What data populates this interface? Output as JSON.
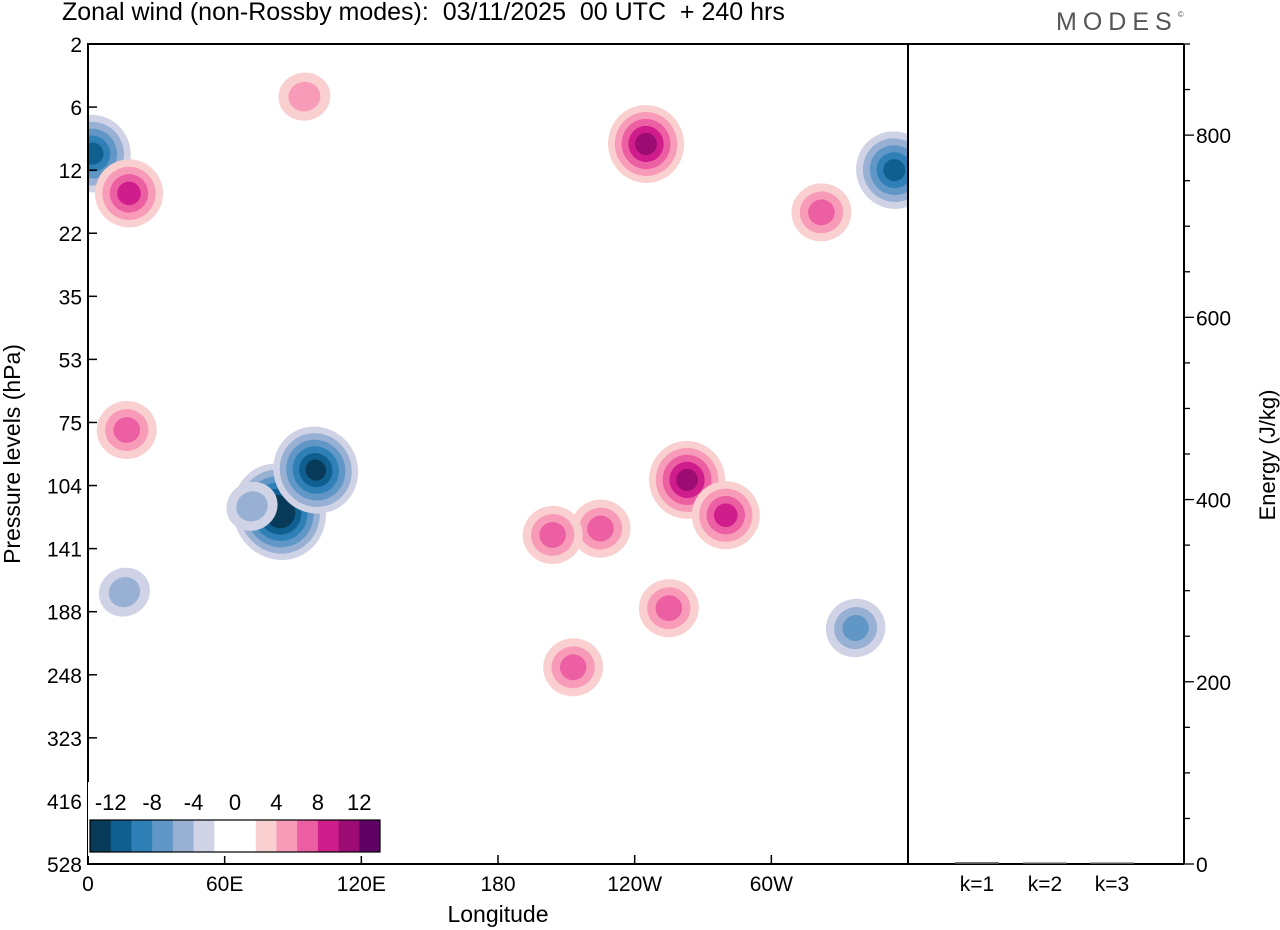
{
  "title": "Zonal wind (non-Rossby modes):  03/11/2025  00 UTC  + 240 hrs",
  "logo": "MODES",
  "logo_mark": "©",
  "colors": {
    "frame": "#000000",
    "background": "#ffffff",
    "logo": "#555555",
    "palette": [
      "#073b59",
      "#0f5f91",
      "#2e80b6",
      "#6197c7",
      "#97b0d3",
      "#d0d3e6",
      "#ffffff",
      "#ffffff",
      "#f9cfcf",
      "#f89bb8",
      "#ec5fa2",
      "#cf1d8b",
      "#9c0c73",
      "#5e0066"
    ]
  },
  "chart_data": [
    {
      "type": "heatmap",
      "title": "Zonal wind (non-Rossby modes):  03/11/2025  00 UTC  + 240 hrs",
      "xlabel": "Longitude",
      "ylabel": "Pressure levels (hPa)",
      "x_ticks": [
        "0",
        "60E",
        "120E",
        "180",
        "120W",
        "60W"
      ],
      "x_tick_values": [
        0,
        60,
        120,
        180,
        240,
        300
      ],
      "xlim": [
        0,
        360
      ],
      "y_ticks": [
        "2",
        "6",
        "12",
        "22",
        "35",
        "53",
        "75",
        "104",
        "141",
        "188",
        "248",
        "323",
        "416",
        "528"
      ],
      "colorbar": {
        "labels": [
          "-12",
          "-8",
          "-4",
          "0",
          "4",
          "8",
          "12"
        ],
        "levels": [
          -14,
          -12,
          -10,
          -8,
          -6,
          -4,
          -2,
          0,
          2,
          4,
          6,
          8,
          10,
          12,
          14
        ]
      },
      "features": [
        {
          "lon": 84,
          "level": 118,
          "value": -14
        },
        {
          "lon": 100,
          "level": 96,
          "value": -12
        },
        {
          "lon": 72,
          "level": 115,
          "value": -4
        },
        {
          "lon": 16,
          "level": 172,
          "value": -4
        },
        {
          "lon": 2,
          "level": 10,
          "value": -10
        },
        {
          "lon": 354,
          "level": 12,
          "value": -9
        },
        {
          "lon": 337,
          "level": 202,
          "value": -5
        },
        {
          "lon": 18,
          "level": 15,
          "value": 8
        },
        {
          "lon": 245,
          "level": 9,
          "value": 9
        },
        {
          "lon": 263,
          "level": 101,
          "value": 9
        },
        {
          "lon": 280,
          "level": 120,
          "value": 8
        },
        {
          "lon": 225,
          "level": 128,
          "value": 6
        },
        {
          "lon": 204,
          "level": 132,
          "value": 6
        },
        {
          "lon": 17,
          "level": 78,
          "value": 5
        },
        {
          "lon": 255,
          "level": 185,
          "value": 5
        },
        {
          "lon": 213,
          "level": 240,
          "value": 5
        },
        {
          "lon": 95,
          "level": 5,
          "value": 4
        },
        {
          "lon": 322,
          "level": 18,
          "value": 5
        }
      ]
    },
    {
      "type": "bar",
      "categories": [
        "k=1",
        "k=2",
        "k=3"
      ],
      "values": [
        2,
        1,
        1
      ],
      "ylabel": "Energy (J/kg)",
      "ylim": [
        0,
        900
      ],
      "y_ticks": [
        0,
        200,
        400,
        600,
        800
      ],
      "y_minor_step": 50
    }
  ]
}
